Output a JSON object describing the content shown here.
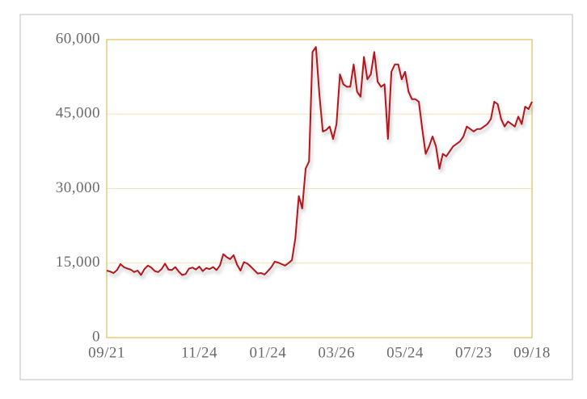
{
  "chart_data": {
    "type": "line",
    "categories": [
      "09/21",
      null,
      null,
      null,
      null,
      null,
      null,
      null,
      null,
      null,
      null,
      null,
      null,
      null,
      null,
      null,
      null,
      null,
      null,
      null,
      null,
      null,
      null,
      null,
      null,
      null,
      null,
      "11/24",
      null,
      null,
      null,
      null,
      null,
      null,
      null,
      null,
      null,
      null,
      null,
      null,
      null,
      null,
      null,
      null,
      null,
      null,
      null,
      "01/24",
      null,
      null,
      null,
      null,
      null,
      null,
      null,
      null,
      null,
      null,
      null,
      null,
      null,
      null,
      null,
      null,
      null,
      null,
      null,
      "03/26",
      null,
      null,
      null,
      null,
      null,
      null,
      null,
      null,
      null,
      null,
      null,
      null,
      null,
      null,
      null,
      null,
      null,
      null,
      null,
      "05/24",
      null,
      null,
      null,
      null,
      null,
      null,
      null,
      null,
      null,
      null,
      null,
      null,
      null,
      null,
      null,
      null,
      null,
      null,
      null,
      "07/23",
      null,
      null,
      null,
      null,
      null,
      null,
      null,
      null,
      null,
      null,
      null,
      null,
      null,
      null,
      null,
      null,
      "09/18"
    ],
    "values": [
      13500,
      13300,
      13000,
      13600,
      14800,
      14200,
      13900,
      13700,
      13200,
      13500,
      12600,
      13800,
      14500,
      14100,
      13400,
      13200,
      13800,
      14900,
      13700,
      13600,
      14200,
      13300,
      12600,
      12800,
      13900,
      14100,
      13700,
      14300,
      13400,
      14000,
      13800,
      14200,
      13600,
      14500,
      16800,
      16200,
      15800,
      16600,
      14700,
      13500,
      15200,
      14900,
      14300,
      13600,
      12900,
      13000,
      12700,
      13400,
      14200,
      15300,
      15100,
      14800,
      14500,
      15000,
      15600,
      20000,
      28500,
      26000,
      34000,
      35500,
      57500,
      58500,
      49000,
      41500,
      41800,
      42500,
      40000,
      43000,
      53000,
      51000,
      50500,
      50500,
      55000,
      49500,
      48500,
      56500,
      52000,
      53000,
      57500,
      51500,
      50500,
      51000,
      40000,
      53500,
      55000,
      55000,
      52000,
      53500,
      49500,
      48000,
      48000,
      47500,
      42000,
      37000,
      38500,
      40500,
      38500,
      34000,
      37000,
      36500,
      37500,
      38500,
      39000,
      39500,
      40500,
      42500,
      42000,
      41500,
      42000,
      42000,
      42500,
      43000,
      44000,
      47500,
      47000,
      44000,
      42500,
      43500,
      43000,
      42500,
      44500,
      43000,
      46500,
      46000,
      47500
    ],
    "color": "#b5121b",
    "ylim": [
      0,
      60000
    ],
    "yticks": [
      0,
      {
        "value": 15000,
        "label": "15,000"
      },
      {
        "value": 30000,
        "label": "30,000"
      },
      {
        "value": 45000,
        "label": "45,000"
      },
      {
        "value": 60000,
        "label": "60,000"
      }
    ],
    "grid": true
  }
}
